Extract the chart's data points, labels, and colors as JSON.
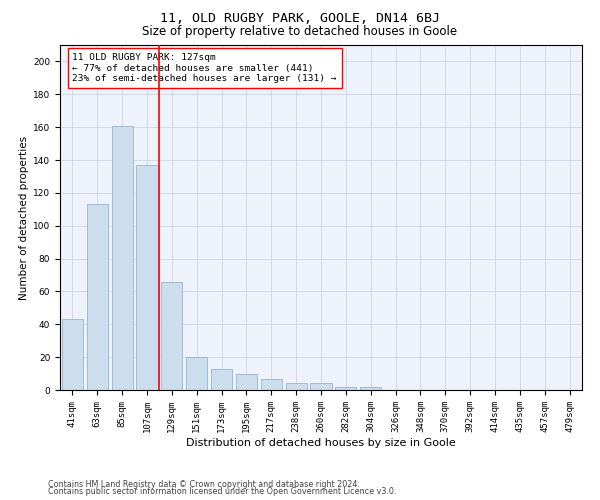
{
  "title1": "11, OLD RUGBY PARK, GOOLE, DN14 6BJ",
  "title2": "Size of property relative to detached houses in Goole",
  "xlabel": "Distribution of detached houses by size in Goole",
  "ylabel": "Number of detached properties",
  "bins": [
    "41sqm",
    "63sqm",
    "85sqm",
    "107sqm",
    "129sqm",
    "151sqm",
    "173sqm",
    "195sqm",
    "217sqm",
    "238sqm",
    "260sqm",
    "282sqm",
    "304sqm",
    "326sqm",
    "348sqm",
    "370sqm",
    "392sqm",
    "414sqm",
    "435sqm",
    "457sqm",
    "479sqm"
  ],
  "values": [
    43,
    113,
    161,
    137,
    66,
    20,
    13,
    10,
    7,
    4,
    4,
    2,
    2,
    0,
    0,
    0,
    0,
    0,
    0,
    0,
    0
  ],
  "bar_color": "#ccdded",
  "bar_edge_color": "#88aacc",
  "ref_line_color": "red",
  "annotation_text": "11 OLD RUGBY PARK: 127sqm\n← 77% of detached houses are smaller (441)\n23% of semi-detached houses are larger (131) →",
  "annotation_box_color": "white",
  "annotation_box_edge": "red",
  "ylim": [
    0,
    210
  ],
  "yticks": [
    0,
    20,
    40,
    60,
    80,
    100,
    120,
    140,
    160,
    180,
    200
  ],
  "background_color": "#eef2fb",
  "grid_color": "#c5cfe0",
  "footer1": "Contains HM Land Registry data © Crown copyright and database right 2024.",
  "footer2": "Contains public sector information licensed under the Open Government Licence v3.0.",
  "title1_fontsize": 9.5,
  "title2_fontsize": 8.5,
  "xlabel_fontsize": 8,
  "ylabel_fontsize": 7.5,
  "tick_fontsize": 6.5,
  "annotation_fontsize": 6.8,
  "footer_fontsize": 5.8
}
